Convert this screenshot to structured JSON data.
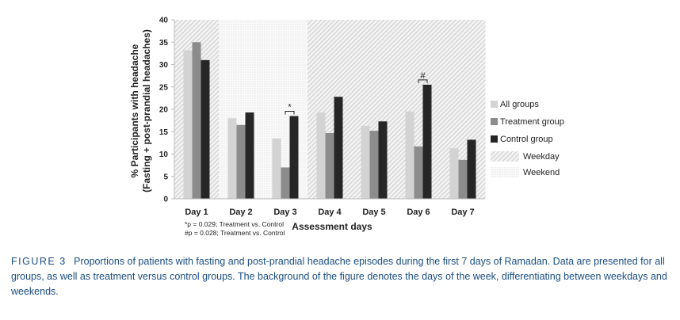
{
  "chart_data": {
    "type": "bar",
    "categories": [
      "Day 1",
      "Day 2",
      "Day 3",
      "Day 4",
      "Day 5",
      "Day 6",
      "Day 7"
    ],
    "series": [
      {
        "name": "All groups",
        "color": "#d3d3d3",
        "values": [
          33.2,
          18.0,
          13.5,
          19.3,
          16.3,
          19.5,
          11.3
        ]
      },
      {
        "name": "Treatment group",
        "color": "#8c8c8c",
        "values": [
          35.0,
          16.5,
          7.0,
          14.7,
          15.2,
          11.7,
          8.7
        ]
      },
      {
        "name": "Control group",
        "color": "#262626",
        "values": [
          31.0,
          19.3,
          18.5,
          22.8,
          17.3,
          25.5,
          13.2
        ]
      }
    ],
    "background": [
      {
        "name": "Weekday",
        "pattern": "diagonal-hatch",
        "days": [
          "Day 1",
          "Day 4",
          "Day 5",
          "Day 6",
          "Day 7"
        ]
      },
      {
        "name": "Weekend",
        "pattern": "dots",
        "days": [
          "Day 2",
          "Day 3"
        ]
      }
    ],
    "significance": [
      {
        "category": "Day 3",
        "symbol": "*"
      },
      {
        "category": "Day 6",
        "symbol": "#"
      }
    ],
    "ylim": [
      0,
      40
    ],
    "yticks": [
      0,
      5,
      10,
      15,
      20,
      25,
      30,
      35,
      40
    ],
    "xlabel": "Assessment days",
    "ylabel_line1": "% Participants with headache",
    "ylabel_line2": "(Fasting + post-prandial headaches)",
    "notes": [
      "*p = 0.029; Treatment vs. Control",
      "#p = 0.028; Treatment vs. Control"
    ],
    "legend_position": "right"
  },
  "caption": {
    "label": "FIGURE 3",
    "text": "Proportions of patients with fasting and post-prandial headache episodes during the first 7 days of Ramadan. Data are presented for all groups, as well as treatment versus control groups. The background of the figure denotes the days of the week, differentiating between weekdays and weekends."
  }
}
